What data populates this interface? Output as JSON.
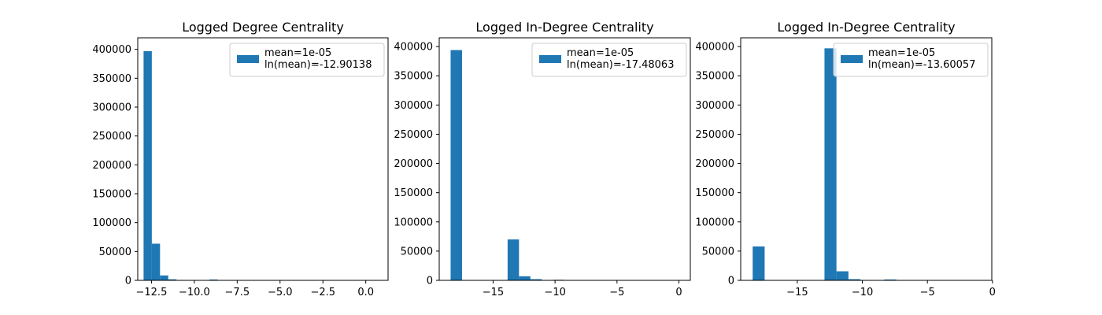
{
  "chart_data": [
    {
      "type": "histogram",
      "title": "Logged Degree Centrality",
      "xlabel": "",
      "ylabel": "",
      "xlim": [
        -13.3,
        1.3
      ],
      "ylim": [
        0,
        420000
      ],
      "xticks": [
        -12.5,
        -10.0,
        -7.5,
        -5.0,
        -2.5,
        0.0
      ],
      "xtick_labels": [
        "−12.5",
        "−10.0",
        "−7.5",
        "−5.0",
        "−2.5",
        "0.0"
      ],
      "yticks": [
        0,
        50000,
        100000,
        150000,
        200000,
        250000,
        300000,
        350000,
        400000
      ],
      "ytick_labels": [
        "0",
        "50000",
        "100000",
        "150000",
        "200000",
        "250000",
        "300000",
        "350000",
        "400000"
      ],
      "bin_start": -12.96,
      "bin_width": 0.48,
      "values": [
        397000,
        63500,
        8500,
        1800,
        600,
        200,
        100,
        100,
        1500,
        150,
        50,
        50,
        0,
        0,
        0,
        0,
        0,
        0,
        0,
        0
      ],
      "legend": {
        "position": "upper right",
        "lines": [
          "mean=1e-05",
          "ln(mean)=-12.90138"
        ]
      },
      "color": "#1f77b4"
    },
    {
      "type": "histogram",
      "title": "Logged In-Degree Centrality",
      "xlabel": "",
      "ylabel": "",
      "xlim": [
        -19.35,
        0.92
      ],
      "ylim": [
        0,
        415000
      ],
      "xticks": [
        -15,
        -10,
        -5,
        0
      ],
      "xtick_labels": [
        "−15",
        "−10",
        "−5",
        "0"
      ],
      "yticks": [
        0,
        50000,
        100000,
        150000,
        200000,
        250000,
        300000,
        350000,
        400000
      ],
      "ytick_labels": [
        "0",
        "50000",
        "100000",
        "150000",
        "200000",
        "250000",
        "300000",
        "350000",
        "400000"
      ],
      "bin_start": -18.43,
      "bin_width": 0.92,
      "values": [
        394000,
        0,
        0,
        0,
        0,
        70000,
        7000,
        2000,
        300,
        1000,
        200,
        100,
        50,
        0,
        0,
        0,
        0,
        0,
        0,
        0
      ],
      "legend": {
        "position": "upper right",
        "lines": [
          "mean=1e-05",
          "ln(mean)=-17.48063"
        ]
      },
      "color": "#1f77b4"
    },
    {
      "type": "histogram",
      "title": "Logged In-Degree Centrality",
      "xlabel": "",
      "ylabel": "",
      "xlim": [
        -19.35,
        -0.05
      ],
      "ylim": [
        0,
        415000
      ],
      "xticks": [
        -15,
        -10,
        -5,
        0
      ],
      "xtick_labels": [
        "−15",
        "−10",
        "−5",
        "0"
      ],
      "yticks": [
        0,
        50000,
        100000,
        150000,
        200000,
        250000,
        300000,
        350000,
        400000
      ],
      "ytick_labels": [
        "0",
        "50000",
        "100000",
        "150000",
        "200000",
        "250000",
        "300000",
        "350000",
        "400000"
      ],
      "bin_start": -18.43,
      "bin_width": 0.92,
      "values": [
        58000,
        0,
        0,
        0,
        0,
        0,
        397000,
        15500,
        2000,
        300,
        200,
        1500,
        100,
        50,
        0,
        0,
        0,
        0,
        0,
        0
      ],
      "legend": {
        "position": "upper right",
        "lines": [
          "mean=1e-05",
          "ln(mean)=-13.60057"
        ]
      },
      "color": "#1f77b4"
    }
  ]
}
